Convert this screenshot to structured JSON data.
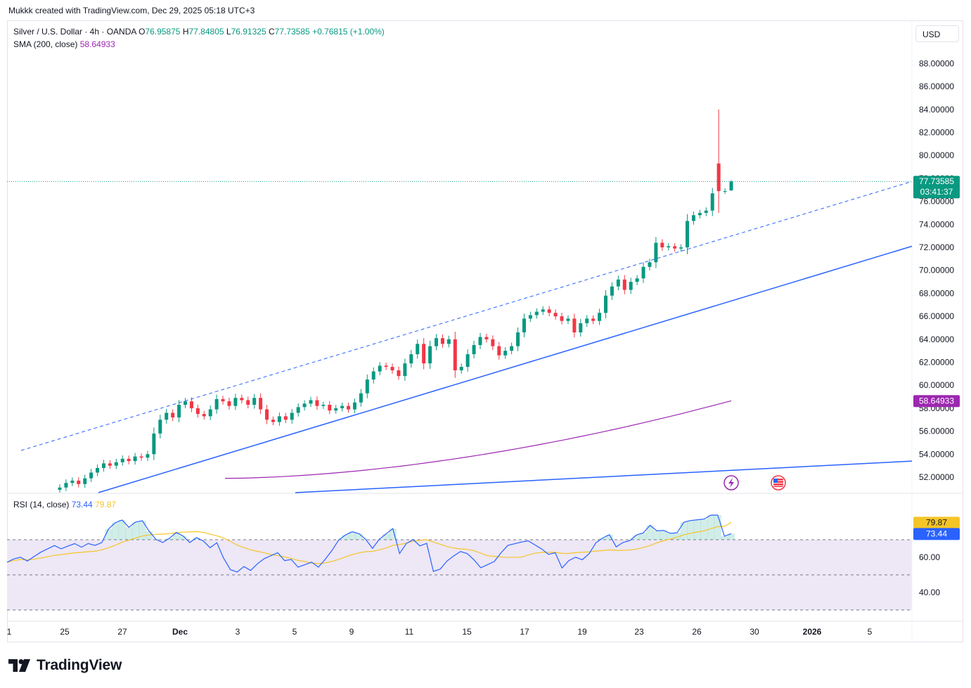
{
  "credit": "Mukkk created with TradingView.com, Dec 29, 2025 05:18 UTC+3",
  "legend": {
    "symbol": "Silver / U.S. Dollar · 4h · OANDA",
    "o_label": "O",
    "o_value": "76.95875",
    "h_label": "H",
    "h_value": "77.84805",
    "l_label": "L",
    "l_value": "76.91325",
    "c_label": "C",
    "c_value": "77.73585",
    "change": "+0.76815 (+1.00%)"
  },
  "sma_legend": {
    "label": "SMA (200, close)",
    "value": "58.64933"
  },
  "rsi_legend": {
    "label": "RSI (14, close)",
    "rsi_value": "73.44",
    "ma_value": "79.87"
  },
  "currency": "USD",
  "badges": {
    "last_price": "77.73585",
    "countdown": "03:41:37",
    "sma": "58.64933",
    "rsi_ma": "79.87",
    "rsi": "73.44"
  },
  "colors": {
    "up": "#089981",
    "down": "#f23645",
    "sma": "#9c27b0",
    "trendline": "#2962ff",
    "rsi": "#2962ff",
    "rsi_ma": "#f5c527",
    "rsi_band": "#ede7f6"
  },
  "logo_text": "TradingView",
  "chart_data": {
    "type": "candlestick",
    "symbol": "Silver / U.S. Dollar",
    "timeframe": "4h",
    "price_axis": {
      "ticks": [
        "52.00000",
        "54.00000",
        "56.00000",
        "58.00000",
        "60.00000",
        "62.00000",
        "64.00000",
        "66.00000",
        "68.00000",
        "70.00000",
        "72.00000",
        "74.00000",
        "76.00000",
        "78.00000",
        "80.00000",
        "82.00000",
        "84.00000",
        "86.00000",
        "88.00000"
      ],
      "range": [
        50.5,
        89.5
      ]
    },
    "time_axis": {
      "ticks": [
        "1",
        "25",
        "27",
        "Dec",
        "3",
        "5",
        "9",
        "11",
        "15",
        "17",
        "19",
        "23",
        "26",
        "30",
        "2026",
        "5"
      ]
    },
    "closes": [
      51.1,
      51.5,
      51.7,
      51.4,
      51.9,
      52.4,
      52.8,
      53.2,
      53.0,
      53.3,
      53.6,
      53.4,
      53.8,
      53.7,
      54.0,
      55.8,
      57.0,
      57.6,
      57.2,
      58.3,
      58.6,
      58.0,
      57.5,
      57.3,
      57.9,
      58.8,
      58.6,
      58.2,
      58.9,
      58.7,
      58.3,
      58.9,
      57.9,
      57.0,
      56.8,
      57.3,
      57.0,
      57.6,
      58.1,
      58.4,
      58.7,
      58.2,
      58.3,
      57.8,
      58.0,
      58.2,
      57.9,
      58.5,
      59.3,
      60.5,
      61.2,
      61.7,
      61.6,
      61.3,
      60.8,
      61.9,
      62.7,
      63.6,
      61.9,
      63.4,
      64.1,
      63.6,
      64.0,
      61.3,
      61.6,
      62.7,
      63.5,
      64.2,
      64.0,
      63.4,
      62.6,
      63.0,
      63.4,
      64.6,
      65.8,
      66.1,
      66.4,
      66.6,
      66.3,
      66.0,
      65.6,
      65.8,
      64.6,
      65.4,
      65.8,
      65.6,
      66.3,
      67.8,
      68.6,
      69.2,
      68.3,
      69.0,
      69.3,
      70.3,
      70.7,
      72.4,
      72.0,
      72.1,
      71.9,
      72.0,
      74.3,
      74.8,
      75.0,
      75.2,
      76.7,
      79.3,
      76.9,
      77.74
    ],
    "last": {
      "open": 76.95875,
      "high": 77.84805,
      "low": 76.91325,
      "close": 77.73585,
      "change": 0.76815,
      "change_pct": 1.0
    },
    "sma200": {
      "length": 200,
      "last": 58.64933
    },
    "rsi": {
      "length": 14,
      "last": 73.44,
      "ma_last": 79.87,
      "levels": [
        70,
        50,
        30
      ],
      "ticks": [
        "40.00",
        "60.00"
      ]
    }
  }
}
